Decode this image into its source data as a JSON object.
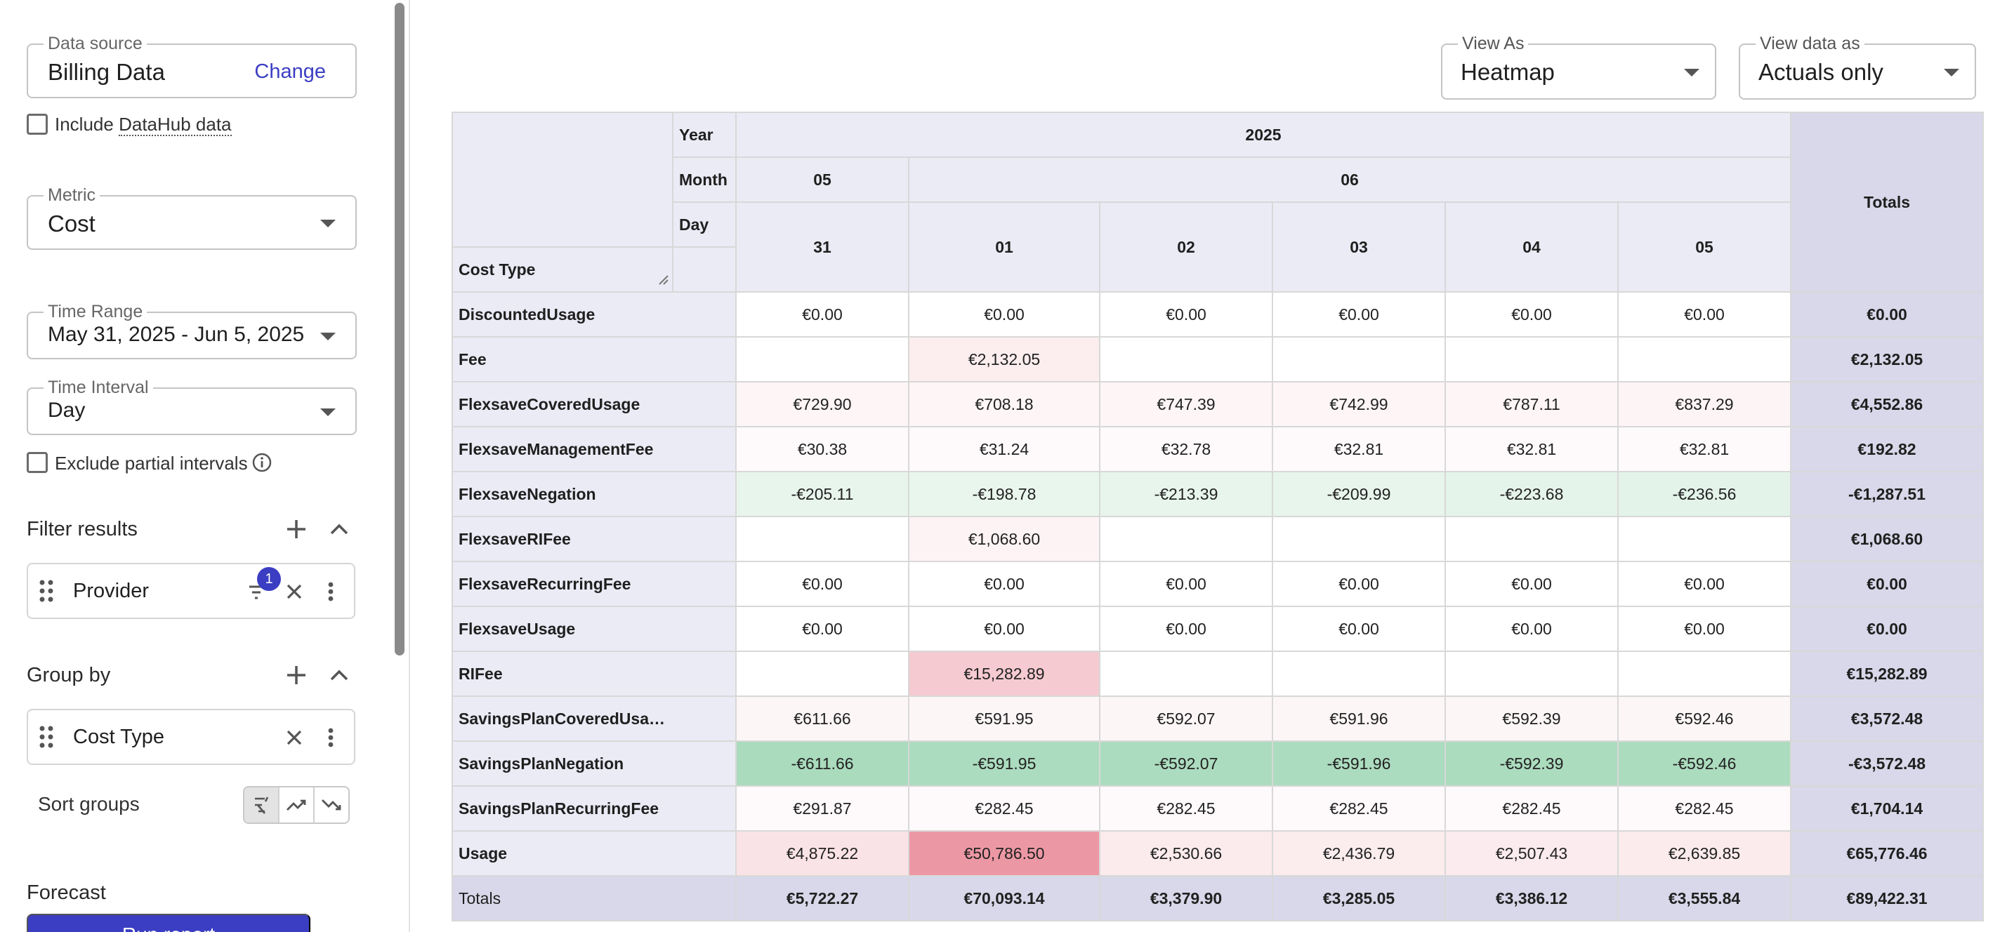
{
  "sidebar": {
    "data_source": {
      "label": "Data source",
      "value": "Billing Data",
      "action": "Change"
    },
    "include_datahub": {
      "prefix": "Include",
      "linked": "DataHub data"
    },
    "metric": {
      "label": "Metric",
      "value": "Cost"
    },
    "time_range": {
      "label": "Time Range",
      "value": "May 31, 2025 - Jun 5, 2025"
    },
    "time_interval": {
      "label": "Time Interval",
      "value": "Day"
    },
    "exclude_partial": {
      "label": "Exclude partial intervals"
    },
    "filter_results": {
      "title": "Filter results",
      "chip_label": "Provider",
      "badge": "1"
    },
    "group_by": {
      "title": "Group by",
      "chip_label": "Cost Type"
    },
    "sort_groups": {
      "label": "Sort groups",
      "active": "A-Z"
    },
    "forecast": {
      "title": "Forecast"
    },
    "run_button": {
      "label": "Run report"
    }
  },
  "controls": {
    "view_as": {
      "label": "View As",
      "value": "Heatmap"
    },
    "view_data_as": {
      "label": "View data as",
      "value": "Actuals only"
    }
  },
  "table": {
    "header": {
      "year_label": "Year",
      "month_label": "Month",
      "day_label": "Day",
      "row_axis_label": "Cost Type",
      "year": "2025",
      "months": [
        {
          "label": "05",
          "span": 1
        },
        {
          "label": "06",
          "span": 5
        }
      ],
      "days": [
        "31",
        "01",
        "02",
        "03",
        "04",
        "05"
      ],
      "totals_label": "Totals"
    },
    "rows": [
      {
        "label": "DiscountedUsage",
        "values": [
          "€0.00",
          "€0.00",
          "€0.00",
          "€0.00",
          "€0.00",
          "€0.00"
        ],
        "total": "€0.00"
      },
      {
        "label": "Fee",
        "values": [
          "",
          "€2,132.05",
          "",
          "",
          "",
          ""
        ],
        "total": "€2,132.05"
      },
      {
        "label": "FlexsaveCoveredUsage",
        "values": [
          "€729.90",
          "€708.18",
          "€747.39",
          "€742.99",
          "€787.11",
          "€837.29"
        ],
        "total": "€4,552.86"
      },
      {
        "label": "FlexsaveManagementFee",
        "values": [
          "€30.38",
          "€31.24",
          "€32.78",
          "€32.81",
          "€32.81",
          "€32.81"
        ],
        "total": "€192.82"
      },
      {
        "label": "FlexsaveNegation",
        "values": [
          "-€205.11",
          "-€198.78",
          "-€213.39",
          "-€209.99",
          "-€223.68",
          "-€236.56"
        ],
        "total": "-€1,287.51"
      },
      {
        "label": "FlexsaveRIFee",
        "values": [
          "",
          "€1,068.60",
          "",
          "",
          "",
          ""
        ],
        "total": "€1,068.60"
      },
      {
        "label": "FlexsaveRecurringFee",
        "values": [
          "€0.00",
          "€0.00",
          "€0.00",
          "€0.00",
          "€0.00",
          "€0.00"
        ],
        "total": "€0.00"
      },
      {
        "label": "FlexsaveUsage",
        "values": [
          "€0.00",
          "€0.00",
          "€0.00",
          "€0.00",
          "€0.00",
          "€0.00"
        ],
        "total": "€0.00"
      },
      {
        "label": "RIFee",
        "values": [
          "",
          "€15,282.89",
          "",
          "",
          "",
          ""
        ],
        "total": "€15,282.89"
      },
      {
        "label": "SavingsPlanCoveredUsa…",
        "values": [
          "€611.66",
          "€591.95",
          "€592.07",
          "€591.96",
          "€592.39",
          "€592.46"
        ],
        "total": "€3,572.48"
      },
      {
        "label": "SavingsPlanNegation",
        "values": [
          "-€611.66",
          "-€591.95",
          "-€592.07",
          "-€591.96",
          "-€592.39",
          "-€592.46"
        ],
        "total": "-€3,572.48"
      },
      {
        "label": "SavingsPlanRecurringFee",
        "values": [
          "€291.87",
          "€282.45",
          "€282.45",
          "€282.45",
          "€282.45",
          "€282.45"
        ],
        "total": "€1,704.14"
      },
      {
        "label": "Usage",
        "values": [
          "€4,875.22",
          "€50,786.50",
          "€2,530.66",
          "€2,436.79",
          "€2,507.43",
          "€2,639.85"
        ],
        "total": "€65,776.46"
      }
    ],
    "totals_row": {
      "label": "Totals",
      "values": [
        "€5,722.27",
        "€70,093.14",
        "€3,379.90",
        "€3,285.05",
        "€3,386.12",
        "€3,555.84"
      ],
      "total": "€89,422.31"
    },
    "heatmap": {
      "positive_max": 50786.5,
      "negative_max": 611.66,
      "positive_color": "#e0596c",
      "negative_color": "#3faf6a"
    }
  }
}
